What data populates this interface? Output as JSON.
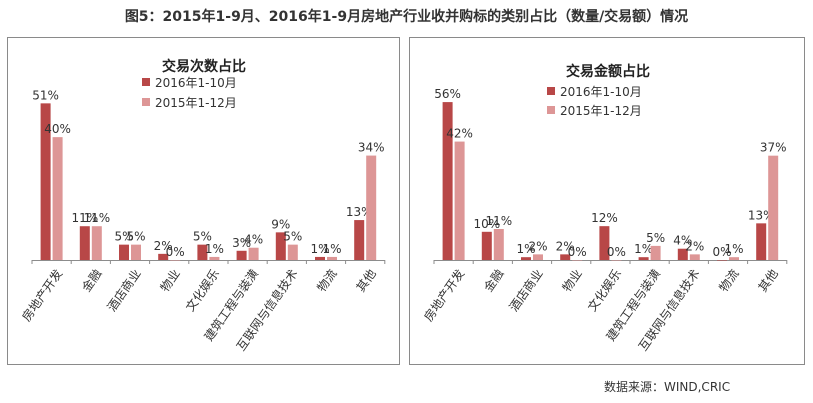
{
  "figure_title": "图5：2015年1-9月、2016年1-9月房地产行业收并购标的类别占比（数量/交易额）情况",
  "source": "数据来源：WIND,CRIC",
  "colors": {
    "series_2016": "#b84747",
    "series_2015": "#dd9696",
    "axis": "#8c8c8c",
    "text": "#333333"
  },
  "chart_data": [
    {
      "type": "bar",
      "title": "交易次数占比",
      "categories": [
        "房地产开发",
        "金融",
        "酒店商业",
        "物业",
        "文化娱乐",
        "建筑工程与装潢",
        "互联网与信息技术",
        "物流",
        "其他"
      ],
      "series": [
        {
          "name": "2016年1-10月",
          "values": [
            51,
            11,
            5,
            2,
            5,
            3,
            9,
            1,
            13
          ],
          "labels": [
            "51%",
            "11%",
            "5%",
            "2%",
            "5%",
            "3%",
            "9%",
            "1%",
            "13%"
          ]
        },
        {
          "name": "2015年1-12月",
          "values": [
            40,
            11,
            5,
            0,
            1,
            4,
            5,
            1,
            34
          ],
          "labels": [
            "40%",
            "11%",
            "5%",
            "0%",
            "1%",
            "4%",
            "5%",
            "1%",
            "34%"
          ]
        }
      ],
      "ylim": [
        0,
        56
      ],
      "legend": "top-center"
    },
    {
      "type": "bar",
      "title": "交易金额占比",
      "categories": [
        "房地产开发",
        "金融",
        "酒店商业",
        "物业",
        "文化娱乐",
        "建筑工程与装潢",
        "互联网与信息技术",
        "物流",
        "其他"
      ],
      "series": [
        {
          "name": "2016年1-10月",
          "values": [
            56,
            10,
            1,
            2,
            12,
            1,
            4,
            0,
            13
          ],
          "labels": [
            "56%",
            "10%",
            "1%",
            "2%",
            "12%",
            "1%",
            "4%",
            "0%",
            "13%"
          ]
        },
        {
          "name": "2015年1-12月",
          "values": [
            42,
            11,
            2,
            0,
            0,
            5,
            2,
            1,
            37
          ],
          "labels": [
            "42%",
            "11%",
            "2%",
            "0%",
            "0%",
            "5%",
            "2%",
            "1%",
            "37%"
          ]
        }
      ],
      "ylim": [
        0,
        61
      ],
      "legend": "top-center"
    }
  ]
}
